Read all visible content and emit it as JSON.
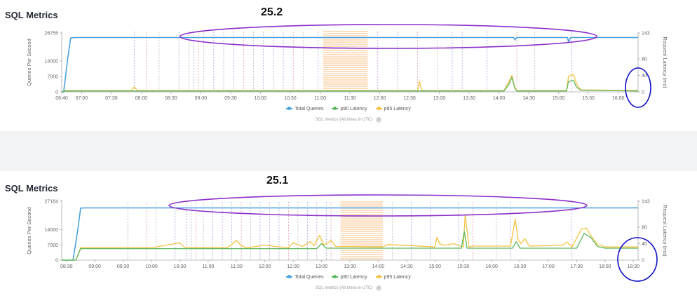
{
  "legend_labels": {
    "total": "Total Queries",
    "p90": "p90 Latency",
    "p95": "p95 Latency"
  },
  "footnote": "SQL metrics (All times in UTC)",
  "info_glyph": "i",
  "colors": {
    "total": "#4aa3df",
    "p90": "#5cb85c",
    "p95": "#f5c342",
    "annotation": "#1010c8",
    "highlight": "#8b2fc9",
    "shade": "#f7a44a"
  },
  "chart_data": [
    {
      "type": "line",
      "title": "SQL Metrics",
      "version_label": "25.2",
      "ylabel": "Queries Per Second",
      "y2label": "Request Latency (ms)",
      "yticks": [
        0,
        7000,
        14000,
        26755
      ],
      "ylim": [
        0,
        26755
      ],
      "y2ticks": [
        0,
        40,
        80,
        143
      ],
      "y2lim": [
        0,
        143
      ],
      "xrange": [
        "06:40",
        "16:20"
      ],
      "xticks": [
        "06:40",
        "07:00",
        "07:30",
        "08:00",
        "08:30",
        "09:00",
        "09:30",
        "10:00",
        "10:30",
        "11:00",
        "11:30",
        "12:00",
        "12:30",
        "13:00",
        "13:30",
        "14:00",
        "14:30",
        "15:00",
        "15:30",
        "16:00"
      ],
      "shaded_range": [
        "11:03",
        "11:48"
      ],
      "vlines": [
        "07:53",
        "08:05",
        "08:18",
        "08:38",
        "08:48",
        "08:53",
        "08:58",
        "09:03",
        "09:13",
        "09:23",
        "09:33",
        "09:43",
        "09:53",
        "10:03",
        "10:13",
        "10:23",
        "10:33",
        "10:43",
        "10:58",
        "11:58",
        "12:18",
        "12:38",
        "12:58",
        "13:13",
        "13:23",
        "13:48",
        "14:18",
        "14:36",
        "15:13"
      ],
      "series": [
        {
          "name": "Total Queries",
          "axis": "left",
          "x": [
            "06:40",
            "06:42",
            "06:46",
            "06:49",
            "06:53",
            "08:00",
            "09:00",
            "10:00",
            "11:00",
            "12:00",
            "13:00",
            "14:00",
            "14:15",
            "14:16",
            "14:18",
            "15:00",
            "15:09",
            "15:10",
            "15:12",
            "16:20"
          ],
          "values": [
            0,
            0,
            15000,
            24500,
            24700,
            24700,
            24700,
            24700,
            24700,
            24700,
            24700,
            24700,
            24700,
            23600,
            24700,
            24700,
            24700,
            22500,
            24700,
            24700
          ]
        },
        {
          "name": "p95 Latency",
          "axis": "right",
          "x": [
            "06:40",
            "06:43",
            "07:50",
            "07:53",
            "07:56",
            "08:00",
            "12:38",
            "12:40",
            "12:42",
            "12:45",
            "14:05",
            "14:10",
            "14:13",
            "14:16",
            "14:18",
            "15:08",
            "15:10",
            "15:15",
            "15:18",
            "15:22",
            "16:20"
          ],
          "values": [
            0,
            3,
            3,
            12,
            3,
            3,
            3,
            25,
            5,
            3,
            3,
            25,
            40,
            10,
            3,
            3,
            38,
            42,
            20,
            5,
            3
          ]
        },
        {
          "name": "p90 Latency",
          "axis": "right",
          "x": [
            "06:40",
            "06:43",
            "14:05",
            "14:10",
            "14:13",
            "14:16",
            "14:18",
            "15:08",
            "15:10",
            "15:15",
            "15:18",
            "15:22",
            "16:20"
          ],
          "values": [
            0,
            2,
            2,
            18,
            35,
            8,
            2,
            2,
            25,
            28,
            12,
            4,
            2
          ]
        }
      ]
    },
    {
      "type": "line",
      "title": "SQL Metrics",
      "version_label": "25.1",
      "ylabel": "Queries Per Second",
      "y2label": "Request Latency (ms)",
      "yticks": [
        0,
        7000,
        14000,
        27164
      ],
      "ylim": [
        0,
        27164
      ],
      "y2ticks": [
        0,
        40,
        80,
        143
      ],
      "y2lim": [
        0,
        143
      ],
      "xrange": [
        "08:25",
        "18:35"
      ],
      "xticks": [
        "08:30",
        "09:00",
        "09:30",
        "10:00",
        "10:30",
        "11:00",
        "11:30",
        "12:00",
        "12:30",
        "13:00",
        "13:30",
        "14:00",
        "14:30",
        "15:00",
        "15:30",
        "16:00",
        "16:30",
        "17:00",
        "17:30",
        "18:00",
        "18:30"
      ],
      "shaded_range": [
        "13:20",
        "14:05"
      ],
      "vlines": [
        "09:35",
        "09:55",
        "10:05",
        "10:25",
        "10:37",
        "10:42",
        "10:47",
        "10:55",
        "11:05",
        "11:15",
        "11:25",
        "11:35",
        "11:45",
        "11:55",
        "12:05",
        "12:15",
        "12:25",
        "12:35",
        "12:45",
        "12:55",
        "13:05",
        "13:10",
        "14:15",
        "14:35",
        "14:55",
        "15:25",
        "15:40",
        "16:05",
        "16:20",
        "17:25"
      ],
      "series": [
        {
          "name": "Total Queries",
          "axis": "left",
          "x": [
            "08:25",
            "08:37",
            "08:42",
            "08:45",
            "08:50",
            "18:35"
          ],
          "values": [
            0,
            0,
            14000,
            24000,
            24100,
            24100
          ]
        },
        {
          "name": "p95 Latency",
          "axis": "right",
          "x": [
            "08:25",
            "08:40",
            "08:45",
            "10:00",
            "10:25",
            "10:30",
            "10:35",
            "11:20",
            "11:25",
            "11:30",
            "11:35",
            "11:40",
            "12:00",
            "12:25",
            "12:30",
            "12:40",
            "12:48",
            "12:52",
            "12:58",
            "13:02",
            "13:06",
            "13:10",
            "13:15",
            "14:05",
            "14:10",
            "15:00",
            "15:02",
            "15:05",
            "15:10",
            "15:20",
            "15:30",
            "15:32",
            "15:34",
            "15:36",
            "15:40",
            "16:20",
            "16:25",
            "16:28",
            "16:31",
            "16:35",
            "16:40",
            "17:15",
            "17:20",
            "17:25",
            "17:35",
            "17:40",
            "17:45",
            "17:52",
            "18:00",
            "18:35"
          ],
          "values": [
            0,
            0,
            30,
            30,
            40,
            42,
            31,
            30,
            38,
            48,
            35,
            30,
            36,
            30,
            42,
            33,
            45,
            35,
            60,
            38,
            40,
            48,
            33,
            32,
            38,
            32,
            55,
            40,
            36,
            40,
            32,
            110,
            72,
            32,
            34,
            34,
            100,
            50,
            40,
            52,
            34,
            36,
            44,
            32,
            75,
            78,
            60,
            38,
            32,
            32
          ]
        },
        {
          "name": "p90 Latency",
          "axis": "right",
          "x": [
            "08:25",
            "08:40",
            "08:45",
            "12:55",
            "13:00",
            "13:05",
            "15:28",
            "15:31",
            "15:34",
            "16:22",
            "16:26",
            "16:30",
            "17:30",
            "17:38",
            "17:45",
            "17:52",
            "18:00",
            "18:35"
          ],
          "values": [
            0,
            0,
            28,
            28,
            40,
            29,
            29,
            70,
            29,
            29,
            45,
            29,
            29,
            65,
            55,
            33,
            29,
            29
          ]
        }
      ]
    }
  ]
}
